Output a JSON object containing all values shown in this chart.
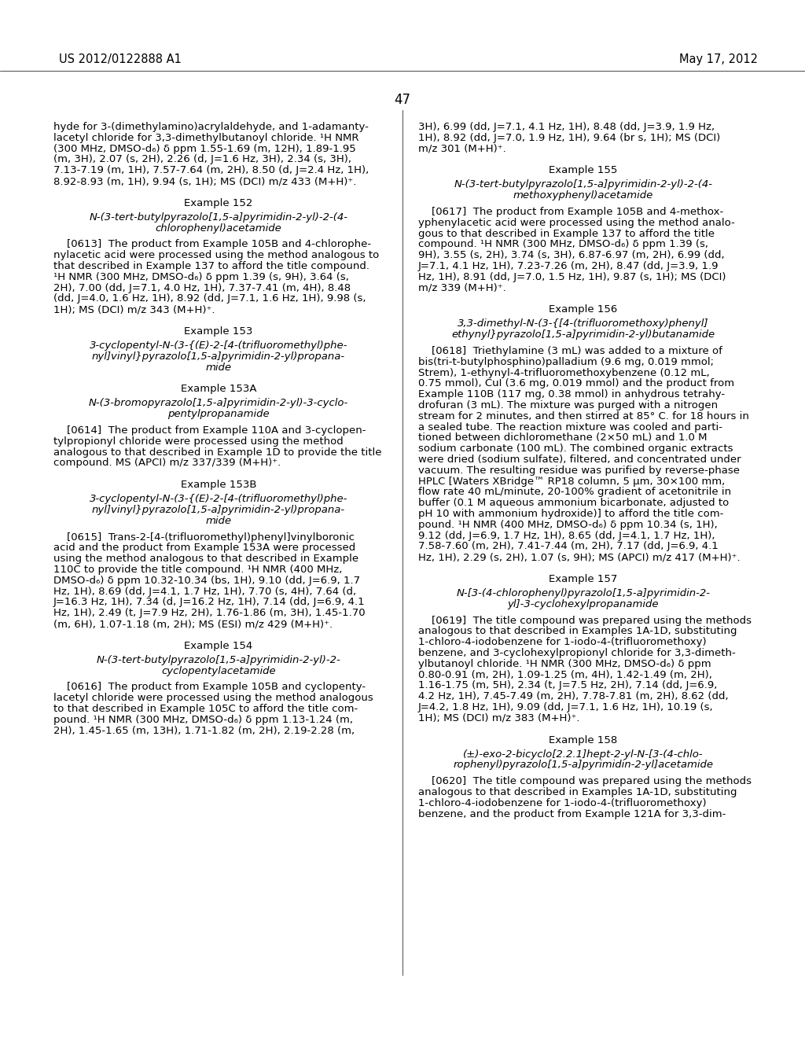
{
  "background_color": "#ffffff",
  "header_left": "US 2012/0122888 A1",
  "header_right": "May 17, 2012",
  "page_number": "47",
  "font_size_body": 9.5,
  "font_size_example_heading": 9.5,
  "font_size_header": 10.5,
  "font_size_page_num": 12,
  "left_column": [
    {
      "type": "body",
      "text": "hyde for 3-(dimethylamino)acrylaldehyde, and 1-adamanty-\nlacetyl chloride for 3,3-dimethylbutanoyl chloride. ¹H NMR\n(300 MHz, DMSO-d₆) δ ppm 1.55-1.69 (m, 12H), 1.89-1.95\n(m, 3H), 2.07 (s, 2H), 2.26 (d, J=1.6 Hz, 3H), 2.34 (s, 3H),\n7.13-7.19 (m, 1H), 7.57-7.64 (m, 2H), 8.50 (d, J=2.4 Hz, 1H),\n8.92-8.93 (m, 1H), 9.94 (s, 1H); MS (DCI) m/z 433 (M+H)⁺."
    },
    {
      "type": "example_heading",
      "text": "Example 152"
    },
    {
      "type": "example_title",
      "text": "N-(3-tert-butylpyrazolo[1,5-a]pyrimidin-2-yl)-2-(4-\nchlorophenyl)acetamide"
    },
    {
      "type": "body",
      "text": "    [0613]  The product from Example 105B and 4-chlorophe-\nnylacetic acid were processed using the method analogous to\nthat described in Example 137 to afford the title compound.\n¹H NMR (300 MHz, DMSO-d₆) δ ppm 1.39 (s, 9H), 3.64 (s,\n2H), 7.00 (dd, J=7.1, 4.0 Hz, 1H), 7.37-7.41 (m, 4H), 8.48\n(dd, J=4.0, 1.6 Hz, 1H), 8.92 (dd, J=7.1, 1.6 Hz, 1H), 9.98 (s,\n1H); MS (DCI) m/z 343 (M+H)⁺."
    },
    {
      "type": "example_heading",
      "text": "Example 153"
    },
    {
      "type": "example_title",
      "text": "3-cyclopentyl-N-(3-{(E)-2-[4-(trifluoromethyl)phe-\nnyl]vinyl}pyrazolo[1,5-a]pyrimidin-2-yl)propana-\nmide"
    },
    {
      "type": "example_heading",
      "text": "Example 153A"
    },
    {
      "type": "example_title",
      "text": "N-(3-bromopyrazolo[1,5-a]pyrimidin-2-yl)-3-cyclo-\npentylpropanamide"
    },
    {
      "type": "body",
      "text": "    [0614]  The product from Example 110A and 3-cyclopen-\ntylpropionyl chloride were processed using the method\nanalogous to that described in Example 1D to provide the title\ncompound. MS (APCI) m/z 337/339 (M+H)⁺."
    },
    {
      "type": "example_heading",
      "text": "Example 153B"
    },
    {
      "type": "example_title",
      "text": "3-cyclopentyl-N-(3-{(E)-2-[4-(trifluoromethyl)phe-\nnyl]vinyl}pyrazolo[1,5-a]pyrimidin-2-yl)propana-\nmide"
    },
    {
      "type": "body",
      "text": "    [0615]  Trans-2-[4-(trifluoromethyl)phenyl]vinylboronic\nacid and the product from Example 153A were processed\nusing the method analogous to that described in Example\n110C to provide the title compound. ¹H NMR (400 MHz,\nDMSO-d₆) δ ppm 10.32-10.34 (bs, 1H), 9.10 (dd, J=6.9, 1.7\nHz, 1H), 8.69 (dd, J=4.1, 1.7 Hz, 1H), 7.70 (s, 4H), 7.64 (d,\nJ=16.3 Hz, 1H), 7.34 (d, J=16.2 Hz, 1H), 7.14 (dd, J=6.9, 4.1\nHz, 1H), 2.49 (t, J=7.9 Hz, 2H), 1.76-1.86 (m, 3H), 1.45-1.70\n(m, 6H), 1.07-1.18 (m, 2H); MS (ESI) m/z 429 (M+H)⁺."
    },
    {
      "type": "example_heading",
      "text": "Example 154"
    },
    {
      "type": "example_title",
      "text": "N-(3-tert-butylpyrazolo[1,5-a]pyrimidin-2-yl)-2-\ncyclopentylacetamide"
    },
    {
      "type": "body",
      "text": "    [0616]  The product from Example 105B and cyclopenty-\nlacetyl chloride were processed using the method analogous\nto that described in Example 105C to afford the title com-\npound. ¹H NMR (300 MHz, DMSO-d₆) δ ppm 1.13-1.24 (m,\n2H), 1.45-1.65 (m, 13H), 1.71-1.82 (m, 2H), 2.19-2.28 (m,"
    }
  ],
  "right_column": [
    {
      "type": "body",
      "text": "3H), 6.99 (dd, J=7.1, 4.1 Hz, 1H), 8.48 (dd, J=3.9, 1.9 Hz,\n1H), 8.92 (dd, J=7.0, 1.9 Hz, 1H), 9.64 (br s, 1H); MS (DCI)\nm/z 301 (M+H)⁺."
    },
    {
      "type": "example_heading",
      "text": "Example 155"
    },
    {
      "type": "example_title",
      "text": "N-(3-tert-butylpyrazolo[1,5-a]pyrimidin-2-yl)-2-(4-\nmethoxyphenyl)acetamide"
    },
    {
      "type": "body",
      "text": "    [0617]  The product from Example 105B and 4-methox-\nyphenylacetic acid were processed using the method analo-\ngous to that described in Example 137 to afford the title\ncompound. ¹H NMR (300 MHz, DMSO-d₆) δ ppm 1.39 (s,\n9H), 3.55 (s, 2H), 3.74 (s, 3H), 6.87-6.97 (m, 2H), 6.99 (dd,\nJ=7.1, 4.1 Hz, 1H), 7.23-7.26 (m, 2H), 8.47 (dd, J=3.9, 1.9\nHz, 1H), 8.91 (dd, J=7.0, 1.5 Hz, 1H), 9.87 (s, 1H); MS (DCI)\nm/z 339 (M+H)⁺."
    },
    {
      "type": "example_heading",
      "text": "Example 156"
    },
    {
      "type": "example_title",
      "text": "3,3-dimethyl-N-(3-{[4-(trifluoromethoxy)phenyl]\nethynyl}pyrazolo[1,5-a]pyrimidin-2-yl)butanamide"
    },
    {
      "type": "body",
      "text": "    [0618]  Triethylamine (3 mL) was added to a mixture of\nbis(tri-t-butylphosphino)palladium (9.6 mg, 0.019 mmol;\nStrem), 1-ethynyl-4-trifluoromethoxybenzene (0.12 mL,\n0.75 mmol), CuI (3.6 mg, 0.019 mmol) and the product from\nExample 110B (117 mg, 0.38 mmol) in anhydrous tetrahy-\ndrofuran (3 mL). The mixture was purged with a nitrogen\nstream for 2 minutes, and then stirred at 85° C. for 18 hours in\na sealed tube. The reaction mixture was cooled and parti-\ntioned between dichloromethane (2×50 mL) and 1.0 M\nsodium carbonate (100 mL). The combined organic extracts\nwere dried (sodium sulfate), filtered, and concentrated under\nvacuum. The resulting residue was purified by reverse-phase\nHPLC [Waters XBridge™ RP18 column, 5 μm, 30×100 mm,\nflow rate 40 mL/minute, 20-100% gradient of acetonitrile in\nbuffer (0.1 M aqueous ammonium bicarbonate, adjusted to\npH 10 with ammonium hydroxide)] to afford the title com-\npound. ¹H NMR (400 MHz, DMSO-d₆) δ ppm 10.34 (s, 1H),\n9.12 (dd, J=6.9, 1.7 Hz, 1H), 8.65 (dd, J=4.1, 1.7 Hz, 1H),\n7.58-7.60 (m, 2H), 7.41-7.44 (m, 2H), 7.17 (dd, J=6.9, 4.1\nHz, 1H), 2.29 (s, 2H), 1.07 (s, 9H); MS (APCI) m/z 417 (M+H)⁺."
    },
    {
      "type": "example_heading",
      "text": "Example 157"
    },
    {
      "type": "example_title",
      "text": "N-[3-(4-chlorophenyl)pyrazolo[1,5-a]pyrimidin-2-\nyl]-3-cyclohexylpropanamide"
    },
    {
      "type": "body",
      "text": "    [0619]  The title compound was prepared using the methods\nanalogous to that described in Examples 1A-1D, substituting\n1-chloro-4-iodobenzene for 1-iodo-4-(trifluoromethoxy)\nbenzene, and 3-cyclohexylpropionyl chloride for 3,3-dimeth-\nylbutanoyl chloride. ¹H NMR (300 MHz, DMSO-d₆) δ ppm\n0.80-0.91 (m, 2H), 1.09-1.25 (m, 4H), 1.42-1.49 (m, 2H),\n1.16-1.75 (m, 5H), 2.34 (t, J=7.5 Hz, 2H), 7.14 (dd, J=6.9,\n4.2 Hz, 1H), 7.45-7.49 (m, 2H), 7.78-7.81 (m, 2H), 8.62 (dd,\nJ=4.2, 1.8 Hz, 1H), 9.09 (dd, J=7.1, 1.6 Hz, 1H), 10.19 (s,\n1H); MS (DCI) m/z 383 (M+H)⁺."
    },
    {
      "type": "example_heading",
      "text": "Example 158"
    },
    {
      "type": "example_title",
      "text": "(±)-exo-2-bicyclo[2.2.1]hept-2-yl-N-[3-(4-chlo-\nrophenyl)pyrazolo[1,5-a]pyrimidin-2-yl]acetamide"
    },
    {
      "type": "body",
      "text": "    [0620]  The title compound was prepared using the methods\nanalogous to that described in Examples 1A-1D, substituting\n1-chloro-4-iodobenzene for 1-iodo-4-(trifluoromethoxy)\nbenzene, and the product from Example 121A for 3,3-dim-"
    }
  ]
}
